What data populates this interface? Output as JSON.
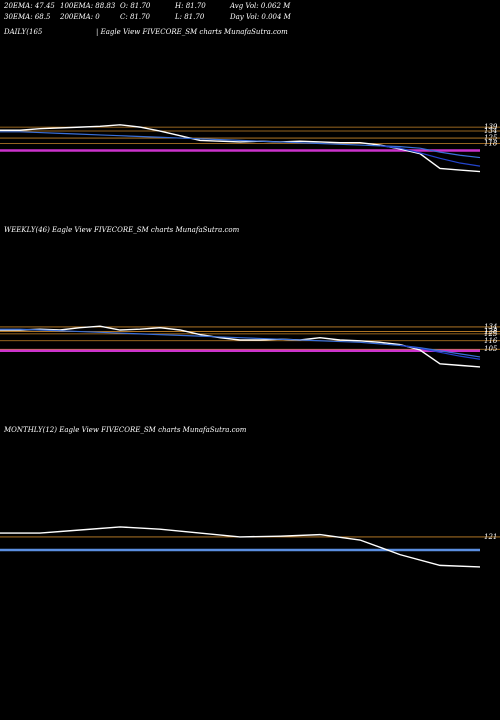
{
  "header": {
    "row1": [
      "20EMA: 47.45",
      "100EMA: 88.83",
      "O: 81.70",
      "H: 81.70",
      "Avg Vol: 0.062  M"
    ],
    "row2": [
      "30EMA: 68.5",
      "200EMA: 0",
      "C: 81.70",
      "L: 81.70",
      "Day Vol: 0.004  M"
    ]
  },
  "chart_data": [
    {
      "type": "line",
      "title": "DAILY(165",
      "subtitle": "| Eagle  View  FIVECORE_SM charts MunafaSutra.com",
      "ylim": [
        20,
        225
      ],
      "xlim": [
        0,
        480
      ],
      "x": [
        0,
        20,
        40,
        60,
        80,
        100,
        120,
        140,
        160,
        180,
        200,
        220,
        240,
        260,
        280,
        300,
        320,
        340,
        360,
        380,
        400,
        420,
        440,
        460,
        480
      ],
      "levels": [
        139,
        134,
        125,
        118
      ],
      "level_color": "#c8862a",
      "marker_lines": [
        {
          "value": 109,
          "color": "#cc33cc"
        }
      ],
      "series": [
        {
          "color": "#ffffff",
          "values": [
            135,
            135,
            137,
            138,
            139,
            140,
            142,
            139,
            134,
            128,
            122,
            121,
            120,
            121,
            120,
            121,
            120,
            119,
            119,
            116,
            111,
            105,
            86,
            84,
            82
          ]
        },
        {
          "color": "#3a6fd8",
          "values": [
            133,
            133,
            132,
            131,
            130,
            129,
            128,
            127,
            126,
            125,
            124,
            123,
            122,
            121,
            120,
            119,
            118,
            117,
            116,
            115,
            114,
            112,
            107,
            103,
            100
          ]
        },
        {
          "color": "#2244cc",
          "values": [
            null,
            null,
            null,
            null,
            null,
            null,
            null,
            null,
            null,
            null,
            null,
            null,
            null,
            null,
            null,
            null,
            null,
            null,
            null,
            115,
            112,
            106,
            99,
            93,
            89
          ]
        }
      ]
    },
    {
      "type": "line",
      "title": "WEEKLY(46) Eagle  View  FIVECORE_SM charts MunafaSutra.com",
      "ylim": [
        13,
        221
      ],
      "xlim": [
        0,
        480
      ],
      "x": [
        0,
        20,
        40,
        60,
        80,
        100,
        120,
        140,
        160,
        180,
        200,
        220,
        240,
        260,
        280,
        300,
        320,
        340,
        360,
        380,
        400,
        420,
        440,
        460,
        480
      ],
      "levels": [
        134,
        128,
        125,
        116,
        105
      ],
      "level_color": "#c8862a",
      "marker_lines": [
        {
          "value": 103,
          "color": "#cc33cc"
        }
      ],
      "series": [
        {
          "color": "#ffffff",
          "values": [
            130,
            130,
            131,
            130,
            133,
            135,
            130,
            131,
            133,
            130,
            124,
            120,
            117,
            117,
            118,
            117,
            120,
            117,
            116,
            114,
            111,
            104,
            86,
            84,
            82
          ]
        },
        {
          "color": "#3a6fd8",
          "values": [
            131,
            131,
            130,
            129,
            128,
            127,
            126,
            125,
            124,
            123,
            122,
            121,
            120,
            119,
            118,
            117,
            116,
            115,
            114,
            112,
            110,
            107,
            103,
            99,
            95
          ]
        },
        {
          "color": "#2244cc",
          "values": [
            null,
            null,
            null,
            null,
            null,
            null,
            null,
            null,
            null,
            null,
            null,
            null,
            null,
            null,
            null,
            null,
            null,
            null,
            null,
            null,
            110,
            106,
            101,
            96,
            92
          ]
        }
      ]
    },
    {
      "type": "line",
      "title": "MONTHLY(12) Eagle  View  FIVECORE_SM charts MunafaSutra.com",
      "ylim": [
        13,
        221
      ],
      "xlim": [
        0,
        480
      ],
      "x": [
        0,
        40,
        80,
        120,
        160,
        200,
        240,
        280,
        320,
        360,
        400,
        440,
        480
      ],
      "levels": [
        121
      ],
      "level_color": "#c8862a",
      "marker_lines": [
        {
          "value": 104,
          "color": "#5b8ee0"
        }
      ],
      "series": [
        {
          "color": "#ffffff",
          "values": [
            126,
            126,
            130,
            134,
            131,
            126,
            121,
            122,
            124,
            117,
            98,
            84,
            82
          ]
        }
      ]
    }
  ]
}
